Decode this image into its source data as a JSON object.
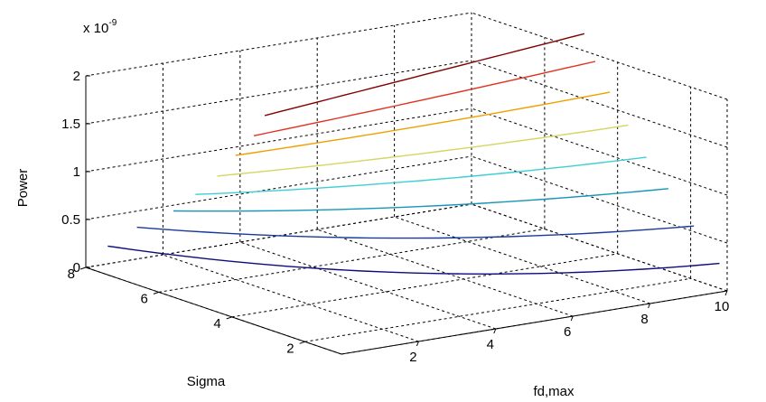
{
  "chart_data": {
    "type": "line3d",
    "title": "",
    "xlabel": "fd,max",
    "ylabel": "Sigma",
    "zlabel": "Power",
    "z_exponent_label": "x 10",
    "z_exponent_power": "-9",
    "xlim": [
      0,
      10
    ],
    "ylim": [
      1,
      8
    ],
    "zlim": [
      0,
      2
    ],
    "x_ticks": [
      "2",
      "4",
      "6",
      "8",
      "10"
    ],
    "y_ticks": [
      "2",
      "4",
      "6",
      "8"
    ],
    "z_ticks": [
      "0",
      "0.5",
      "1",
      "1.5",
      "2"
    ],
    "grid": true,
    "series": [
      {
        "z": 0.3,
        "color": "#0c0c7c",
        "y_start": 7.4,
        "y_end": 1.0,
        "x_mid": 5.0,
        "sag": 0.19
      },
      {
        "z": 0.6,
        "color": "#1a3a9a",
        "y_start": 6.6,
        "y_end": 1.7,
        "x_mid": 5.0,
        "sag": 0.12
      },
      {
        "z": 0.9,
        "color": "#1696b8",
        "y_start": 5.6,
        "y_end": 2.4,
        "x_mid": 5.0,
        "sag": 0.07
      },
      {
        "z": 1.15,
        "color": "#3ecfd6",
        "y_start": 5.0,
        "y_end": 3.0,
        "x_mid": 5.0,
        "sag": 0.05
      },
      {
        "z": 1.42,
        "color": "#d8d460",
        "y_start": 4.4,
        "y_end": 3.5,
        "x_mid": 5.0,
        "sag": 0.03
      },
      {
        "z": 1.7,
        "color": "#f0a000",
        "y_start": 3.9,
        "y_end": 4.0,
        "x_mid": 5.0,
        "sag": 0.02
      },
      {
        "z": 1.97,
        "color": "#e03020",
        "y_start": 3.4,
        "y_end": 4.4,
        "x_mid": 5.0,
        "sag": 0.01
      },
      {
        "z": 2.22,
        "color": "#800000",
        "y_start": 3.1,
        "y_end": 4.7,
        "x_mid": 5.0,
        "sag": 0.0
      }
    ]
  }
}
